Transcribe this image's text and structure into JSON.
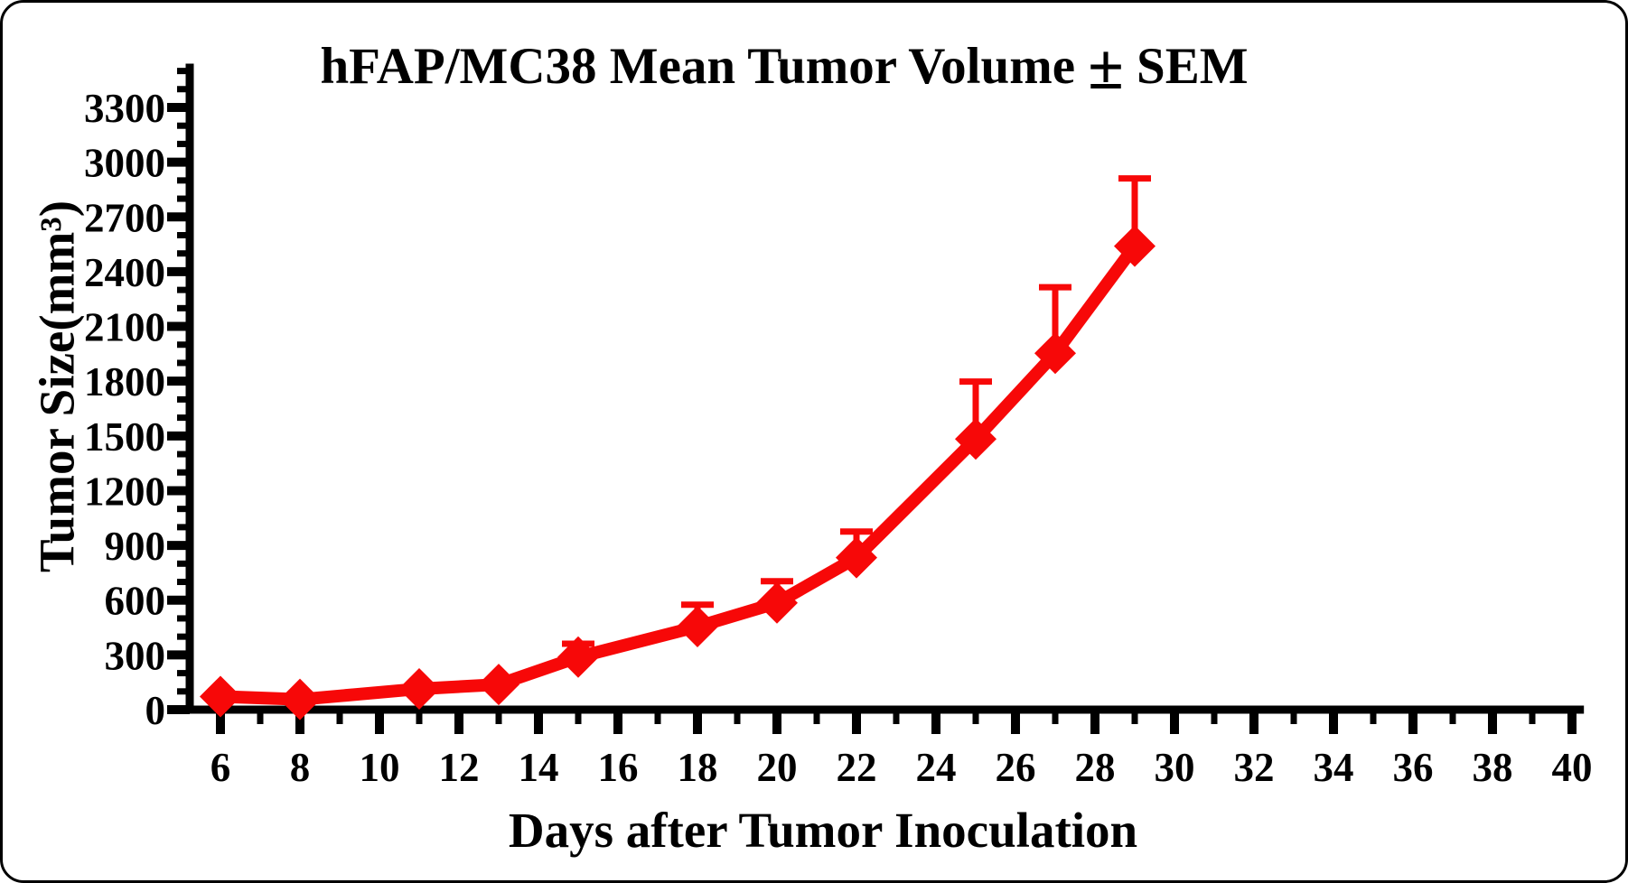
{
  "title_parts": {
    "text": "hFAP/MC38 Mean Tumor Volume",
    "pm": "±",
    "suffix": "SEM"
  },
  "chart_data": {
    "type": "line",
    "title": "hFAP/MC38 Mean Tumor Volume ± SEM",
    "xlabel": "Days after Tumor Inoculation",
    "ylabel": "Tumor Size(mm³)",
    "series_color": "#f70808",
    "axis_color": "#000000",
    "marker": "diamond",
    "grid": false,
    "legend": false,
    "error_bars": "upper SEM only",
    "x": [
      6,
      8,
      11,
      13,
      15,
      18,
      20,
      22,
      25,
      27,
      29
    ],
    "series": [
      {
        "name": "hFAP/MC38 mean tumor volume (mm³)",
        "values": [
          72,
          56,
          114,
          138,
          288,
          455,
          585,
          833,
          1483,
          1953,
          2540
        ],
        "sem_upper": [
          0,
          0,
          0,
          0,
          73,
          120,
          119,
          143,
          315,
          362,
          371
        ]
      }
    ],
    "x_axis": {
      "range": [
        5.2,
        40.3
      ],
      "minor_step": 1,
      "label_step": 2,
      "tick_labels": [
        6,
        8,
        10,
        12,
        14,
        16,
        18,
        20,
        22,
        24,
        26,
        28,
        30,
        32,
        34,
        36,
        38,
        40
      ]
    },
    "y_axis": {
      "range": [
        0,
        3540
      ],
      "minor_step": 100,
      "label_step": 300,
      "tick_labels": [
        0,
        300,
        600,
        900,
        1200,
        1500,
        1800,
        2100,
        2400,
        2700,
        3000,
        3300
      ]
    }
  }
}
